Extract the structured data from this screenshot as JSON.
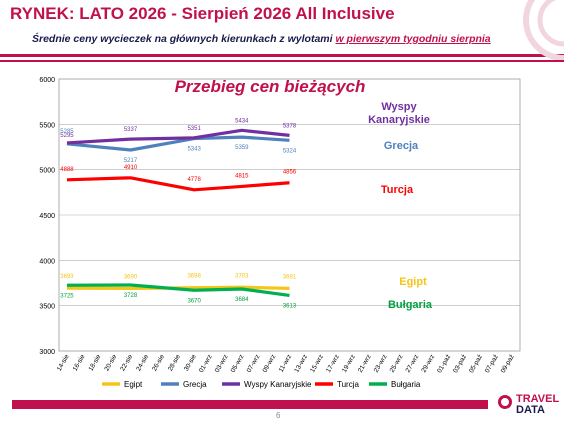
{
  "header": {
    "title": "RYNEK: LATO 2026 - Sierpień 2026 All Inclusive",
    "subtitle_prefix": "Średnie ceny wycieczek na głównych kierunkach  z wylotami ",
    "subtitle_underlined": "w pierwszym tygodniu sierpnia"
  },
  "footer": {
    "page_number": "6",
    "logo_line1": "TRAVEL",
    "logo_line2": "DATA"
  },
  "colors": {
    "brand": "#c0114e",
    "navy": "#1a1a4e"
  },
  "chart_data": {
    "type": "line",
    "title": "Przebieg cen bieżących",
    "ylim": [
      3000,
      6000
    ],
    "yticks": [
      3000,
      3500,
      4000,
      4500,
      5000,
      5500,
      6000
    ],
    "categories": [
      "14-sie",
      "16-sie",
      "18-sie",
      "20-sie",
      "22-sie",
      "24-sie",
      "26-sie",
      "28-sie",
      "30-sie",
      "01-wrz",
      "03-wrz",
      "05-wrz",
      "07-wrz",
      "09-wrz",
      "11-wrz",
      "13-wrz",
      "15-wrz",
      "17-wrz",
      "19-wrz",
      "21-wrz",
      "23-wrz",
      "25-wrz",
      "27-wrz",
      "29-wrz",
      "01-paź",
      "03-paź",
      "05-paź",
      "07-paź",
      "09-paź"
    ],
    "grid": true,
    "legend_position": "bottom",
    "series": [
      {
        "name": "Egipt",
        "color": "#f5c518",
        "label_color": "#f5c518",
        "side_label": "Egipt",
        "points": [
          {
            "i": 0,
            "v": 3693,
            "l": "3693"
          },
          {
            "i": 4,
            "v": 3690,
            "l": "3690"
          },
          {
            "i": 8,
            "v": 3698,
            "l": "3698"
          },
          {
            "i": 11,
            "v": 3703,
            "l": "3703"
          },
          {
            "i": 14,
            "v": 3691,
            "l": "3691"
          }
        ]
      },
      {
        "name": "Grecja",
        "color": "#4f81bd",
        "label_color": "#4f81bd",
        "side_label": "Grecja",
        "points": [
          {
            "i": 0,
            "v": 5285,
            "l": "5285"
          },
          {
            "i": 4,
            "v": 5217,
            "l": "5217"
          },
          {
            "i": 8,
            "v": 5343,
            "l": "5343"
          },
          {
            "i": 11,
            "v": 5359,
            "l": "5359"
          },
          {
            "i": 14,
            "v": 5324,
            "l": "5324"
          }
        ]
      },
      {
        "name": "Wyspy Kanaryjskie",
        "color": "#7030a0",
        "label_color": "#7030a0",
        "side_label": "Wyspy Kanaryjskie",
        "points": [
          {
            "i": 0,
            "v": 5295,
            "l": "5295"
          },
          {
            "i": 4,
            "v": 5337,
            "l": "5337"
          },
          {
            "i": 8,
            "v": 5351,
            "l": "5351"
          },
          {
            "i": 11,
            "v": 5434,
            "l": "5434"
          },
          {
            "i": 14,
            "v": 5378,
            "l": "5378"
          }
        ]
      },
      {
        "name": "Turcja",
        "color": "#ff0000",
        "label_color": "#ff0000",
        "side_label": "Turcja",
        "points": [
          {
            "i": 0,
            "v": 4888,
            "l": "4888"
          },
          {
            "i": 4,
            "v": 4910,
            "l": "4910"
          },
          {
            "i": 8,
            "v": 4778,
            "l": "4778"
          },
          {
            "i": 11,
            "v": 4815,
            "l": "4815"
          },
          {
            "i": 14,
            "v": 4856,
            "l": "4856"
          }
        ]
      },
      {
        "name": "Bułgaria",
        "color": "#00b050",
        "label_color": "#00a040",
        "side_label": "Bułgaria",
        "points": [
          {
            "i": 0,
            "v": 3725,
            "l": "3725"
          },
          {
            "i": 4,
            "v": 3728,
            "l": "3728"
          },
          {
            "i": 8,
            "v": 3670,
            "l": "3670"
          },
          {
            "i": 11,
            "v": 3684,
            "l": "3684"
          },
          {
            "i": 14,
            "v": 3613,
            "l": "3613"
          }
        ]
      }
    ]
  }
}
